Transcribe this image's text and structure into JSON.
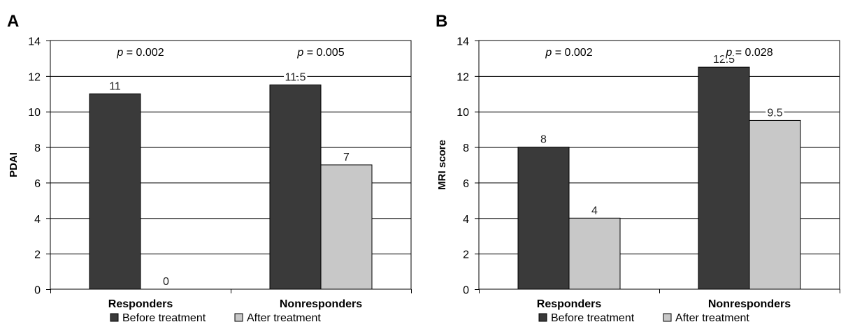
{
  "chart_data": [
    {
      "type": "bar",
      "panel_label": "A",
      "ylabel": "PDAI",
      "ylim": [
        0,
        14
      ],
      "yticks": [
        "0",
        "2",
        "4",
        "6",
        "8",
        "10",
        "12",
        "14"
      ],
      "categories": [
        "Responders",
        "Nonresponders"
      ],
      "series": [
        {
          "name": "Before treatment",
          "color": "#3a3a3a",
          "values": [
            11,
            11.5
          ],
          "labels": [
            "11",
            "11.5"
          ]
        },
        {
          "name": "After treatment",
          "color": "#c8c8c8",
          "values": [
            0,
            7
          ],
          "labels": [
            "0",
            "7"
          ]
        }
      ],
      "p_values": [
        {
          "symbol": "p",
          "text": " = 0.002"
        },
        {
          "symbol": "p",
          "text": " = 0.005"
        }
      ],
      "grid": true,
      "legend_position": "bottom"
    },
    {
      "type": "bar",
      "panel_label": "B",
      "ylabel": "MRI score",
      "ylim": [
        0,
        14
      ],
      "yticks": [
        "0",
        "2",
        "4",
        "6",
        "8",
        "10",
        "12",
        "14"
      ],
      "categories": [
        "Responders",
        "Nonresponders"
      ],
      "series": [
        {
          "name": "Before treatment",
          "color": "#3a3a3a",
          "values": [
            8,
            12.5
          ],
          "labels": [
            "8",
            "12.5"
          ]
        },
        {
          "name": "After treatment",
          "color": "#c8c8c8",
          "values": [
            4,
            9.5
          ],
          "labels": [
            "4",
            "9.5"
          ]
        }
      ],
      "p_values": [
        {
          "symbol": "p",
          "text": " = 0.002"
        },
        {
          "symbol": "p",
          "text": " = 0.028"
        }
      ],
      "grid": true,
      "legend_position": "bottom"
    }
  ]
}
